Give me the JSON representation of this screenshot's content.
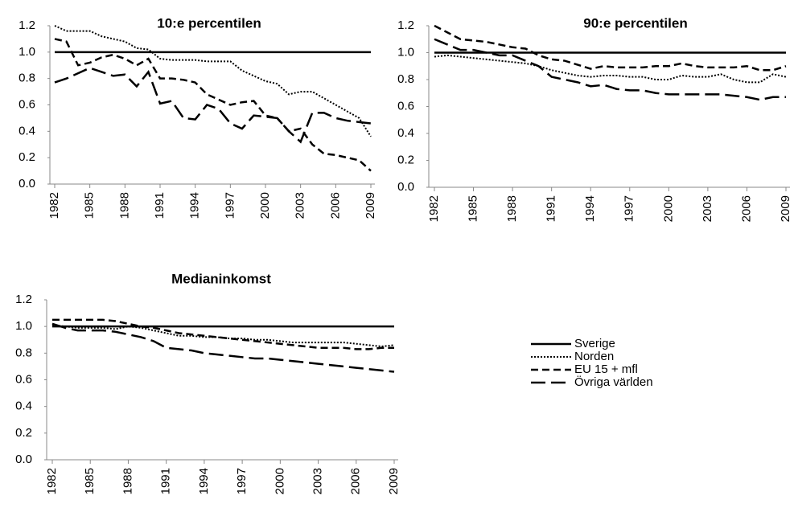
{
  "chart_data": [
    {
      "type": "line",
      "title": "10:e percentilen",
      "x": [
        1982,
        1983,
        1984,
        1985,
        1986,
        1987,
        1988,
        1989,
        1990,
        1991,
        1992,
        1993,
        1994,
        1995,
        1996,
        1997,
        1998,
        1999,
        2000,
        2001,
        2002,
        2003,
        2004,
        2005,
        2006,
        2007,
        2008,
        2009
      ],
      "xlim": [
        1982,
        2009
      ],
      "xticks": [
        1982,
        1985,
        1988,
        1991,
        1994,
        1997,
        2000,
        2003,
        2006,
        2009
      ],
      "ylim": [
        0,
        1.2
      ],
      "yticks": [
        {
          "value": 0,
          "label": "0.0"
        },
        0.2,
        0.4,
        0.6,
        0.8,
        {
          "value": 1,
          "label": "1.0"
        },
        1.2
      ],
      "series": [
        {
          "color": "#000000",
          "dash": "solid",
          "values": [
            1,
            1,
            1,
            1,
            1,
            1,
            1,
            1,
            1,
            1,
            1,
            1,
            1,
            1,
            1,
            1,
            1,
            1,
            1,
            1,
            1,
            1,
            1,
            1,
            1,
            1,
            1,
            1
          ]
        },
        {
          "color": "#000000",
          "dash": "dotted",
          "values": [
            1.2,
            1.16,
            1.16,
            1.16,
            1.12,
            1.1,
            1.08,
            1.03,
            1.02,
            0.95,
            0.94,
            0.94,
            0.94,
            0.93,
            0.93,
            0.93,
            0.86,
            0.82,
            0.78,
            0.76,
            0.68,
            0.7,
            0.7,
            0.65,
            0.6,
            0.55,
            0.5,
            0.36
          ]
        },
        {
          "color": "#000000",
          "dash": "dashed",
          "values": [
            1.1,
            1.08,
            0.9,
            0.92,
            0.96,
            0.98,
            0.95,
            0.9,
            0.95,
            0.8,
            0.8,
            0.79,
            0.77,
            0.68,
            0.64,
            0.6,
            0.62,
            0.63,
            0.52,
            0.5,
            0.4,
            0.42,
            0.3,
            0.23,
            0.22,
            0.2,
            0.18,
            0.1
          ]
        },
        {
          "color": "#000000",
          "dash": "longdash",
          "values": [
            0.77,
            0.8,
            0.84,
            0.88,
            0.85,
            0.82,
            0.83,
            0.74,
            0.85,
            0.61,
            0.63,
            0.5,
            0.49,
            0.6,
            0.57,
            0.46,
            0.42,
            0.52,
            0.51,
            0.5,
            0.4,
            0.32,
            0.54,
            0.54,
            0.5,
            0.48,
            0.47,
            0.46
          ]
        }
      ]
    },
    {
      "type": "line",
      "title": "90:e percentilen",
      "x": [
        1982,
        1983,
        1984,
        1985,
        1986,
        1987,
        1988,
        1989,
        1990,
        1991,
        1992,
        1993,
        1994,
        1995,
        1996,
        1997,
        1998,
        1999,
        2000,
        2001,
        2002,
        2003,
        2004,
        2005,
        2006,
        2007,
        2008,
        2009
      ],
      "xlim": [
        1982,
        2009
      ],
      "xticks": [
        1982,
        1985,
        1988,
        1991,
        1994,
        1997,
        2000,
        2003,
        2006,
        2009
      ],
      "ylim": [
        0,
        1.2
      ],
      "yticks": [
        {
          "value": 0,
          "label": "0.0"
        },
        0.2,
        0.4,
        0.6,
        0.8,
        {
          "value": 1,
          "label": "1.0"
        },
        1.2
      ],
      "series": [
        {
          "color": "#000000",
          "dash": "solid",
          "values": [
            1,
            1,
            1,
            1,
            1,
            1,
            1,
            1,
            1,
            1,
            1,
            1,
            1,
            1,
            1,
            1,
            1,
            1,
            1,
            1,
            1,
            1,
            1,
            1,
            1,
            1,
            1,
            1
          ]
        },
        {
          "color": "#000000",
          "dash": "dotted",
          "values": [
            0.97,
            0.98,
            0.97,
            0.96,
            0.95,
            0.94,
            0.93,
            0.92,
            0.9,
            0.87,
            0.85,
            0.83,
            0.82,
            0.83,
            0.83,
            0.82,
            0.82,
            0.8,
            0.8,
            0.83,
            0.82,
            0.82,
            0.84,
            0.8,
            0.78,
            0.78,
            0.84,
            0.82
          ]
        },
        {
          "color": "#000000",
          "dash": "dashed",
          "values": [
            1.2,
            1.15,
            1.1,
            1.09,
            1.08,
            1.06,
            1.04,
            1.03,
            0.98,
            0.95,
            0.94,
            0.91,
            0.88,
            0.9,
            0.89,
            0.89,
            0.89,
            0.9,
            0.9,
            0.92,
            0.9,
            0.89,
            0.89,
            0.89,
            0.9,
            0.87,
            0.87,
            0.9
          ]
        },
        {
          "color": "#000000",
          "dash": "longdash",
          "values": [
            1.1,
            1.06,
            1.02,
            1.02,
            1,
            0.98,
            0.98,
            0.94,
            0.9,
            0.82,
            0.8,
            0.78,
            0.75,
            0.76,
            0.73,
            0.72,
            0.72,
            0.7,
            0.69,
            0.69,
            0.69,
            0.69,
            0.69,
            0.68,
            0.67,
            0.65,
            0.67,
            0.67
          ]
        }
      ]
    },
    {
      "type": "line",
      "title": "Medianinkomst",
      "legend": "right",
      "x": [
        1982,
        1983,
        1984,
        1985,
        1986,
        1987,
        1988,
        1989,
        1990,
        1991,
        1992,
        1993,
        1994,
        1995,
        1996,
        1997,
        1998,
        1999,
        2000,
        2001,
        2002,
        2003,
        2004,
        2005,
        2006,
        2007,
        2008,
        2009
      ],
      "xlim": [
        1982,
        2009
      ],
      "xticks": [
        1982,
        1985,
        1988,
        1991,
        1994,
        1997,
        2000,
        2003,
        2006,
        2009
      ],
      "ylim": [
        0,
        1.2
      ],
      "yticks": [
        {
          "value": 0,
          "label": "0.0"
        },
        0.2,
        0.4,
        0.6,
        0.8,
        {
          "value": 1,
          "label": "1.0"
        },
        1.2
      ],
      "series": [
        {
          "name": "Sverige",
          "color": "#000000",
          "dash": "solid",
          "values": [
            1,
            1,
            1,
            1,
            1,
            1,
            1,
            1,
            1,
            1,
            1,
            1,
            1,
            1,
            1,
            1,
            1,
            1,
            1,
            1,
            1,
            1,
            1,
            1,
            1,
            1,
            1,
            1
          ]
        },
        {
          "name": "Norden",
          "color": "#000000",
          "dash": "dotted",
          "values": [
            1.01,
            1,
            0.99,
            0.99,
            0.99,
            0.98,
            1,
            0.99,
            0.97,
            0.95,
            0.93,
            0.93,
            0.92,
            0.92,
            0.91,
            0.91,
            0.9,
            0.9,
            0.89,
            0.88,
            0.88,
            0.88,
            0.88,
            0.88,
            0.87,
            0.86,
            0.85,
            0.86
          ]
        },
        {
          "name": "EU 15 + mfl",
          "color": "#000000",
          "dash": "dashed",
          "values": [
            1.05,
            1.05,
            1.05,
            1.05,
            1.05,
            1.04,
            1.02,
            1,
            0.99,
            0.97,
            0.95,
            0.94,
            0.93,
            0.92,
            0.91,
            0.9,
            0.89,
            0.88,
            0.87,
            0.86,
            0.85,
            0.84,
            0.84,
            0.84,
            0.83,
            0.83,
            0.84,
            0.84
          ]
        },
        {
          "name": "Övriga världen",
          "color": "#000000",
          "dash": "longdash",
          "values": [
            1.02,
            0.99,
            0.97,
            0.97,
            0.97,
            0.96,
            0.94,
            0.92,
            0.89,
            0.84,
            0.83,
            0.82,
            0.8,
            0.79,
            0.78,
            0.77,
            0.76,
            0.76,
            0.75,
            0.74,
            0.73,
            0.72,
            0.71,
            0.7,
            0.69,
            0.68,
            0.67,
            0.66
          ]
        }
      ]
    }
  ]
}
